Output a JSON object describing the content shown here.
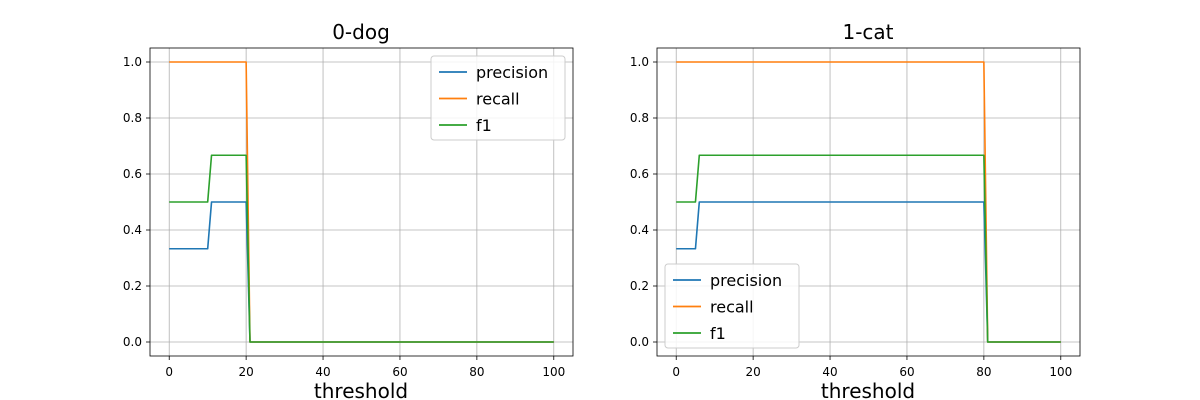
{
  "chart_data": [
    {
      "type": "line",
      "title": "0-dog",
      "xlabel": "threshold",
      "ylabel": "",
      "xlim": [
        -5,
        105
      ],
      "ylim": [
        -0.05,
        1.05
      ],
      "xticks": [
        0,
        20,
        40,
        60,
        80,
        100
      ],
      "yticks": [
        0.0,
        0.2,
        0.4,
        0.6,
        0.8,
        1.0
      ],
      "xtick_labels": [
        "0",
        "20",
        "40",
        "60",
        "80",
        "100"
      ],
      "ytick_labels": [
        "0.0",
        "0.2",
        "0.4",
        "0.6",
        "0.8",
        "1.0"
      ],
      "grid": true,
      "legend_position": "upper right",
      "series": [
        {
          "name": "precision",
          "color": "#1f77b4",
          "x": [
            0,
            10,
            11,
            20,
            21,
            100
          ],
          "y": [
            0.333,
            0.333,
            0.5,
            0.5,
            0.0,
            0.0
          ]
        },
        {
          "name": "recall",
          "color": "#ff7f0e",
          "x": [
            0,
            20,
            21,
            100
          ],
          "y": [
            1.0,
            1.0,
            0.0,
            0.0
          ]
        },
        {
          "name": "f1",
          "color": "#2ca02c",
          "x": [
            0,
            10,
            11,
            20,
            21,
            100
          ],
          "y": [
            0.5,
            0.5,
            0.667,
            0.667,
            0.0,
            0.0
          ]
        }
      ]
    },
    {
      "type": "line",
      "title": "1-cat",
      "xlabel": "threshold",
      "ylabel": "",
      "xlim": [
        -5,
        105
      ],
      "ylim": [
        -0.05,
        1.05
      ],
      "xticks": [
        0,
        20,
        40,
        60,
        80,
        100
      ],
      "yticks": [
        0.0,
        0.2,
        0.4,
        0.6,
        0.8,
        1.0
      ],
      "xtick_labels": [
        "0",
        "20",
        "40",
        "60",
        "80",
        "100"
      ],
      "ytick_labels": [
        "0.0",
        "0.2",
        "0.4",
        "0.6",
        "0.8",
        "1.0"
      ],
      "grid": true,
      "legend_position": "lower left",
      "series": [
        {
          "name": "precision",
          "color": "#1f77b4",
          "x": [
            0,
            5,
            6,
            80,
            81,
            100
          ],
          "y": [
            0.333,
            0.333,
            0.5,
            0.5,
            0.0,
            0.0
          ]
        },
        {
          "name": "recall",
          "color": "#ff7f0e",
          "x": [
            0,
            80,
            81,
            100
          ],
          "y": [
            1.0,
            1.0,
            0.0,
            0.0
          ]
        },
        {
          "name": "f1",
          "color": "#2ca02c",
          "x": [
            0,
            5,
            6,
            80,
            81,
            100
          ],
          "y": [
            0.5,
            0.5,
            0.667,
            0.667,
            0.0,
            0.0
          ]
        }
      ]
    }
  ]
}
